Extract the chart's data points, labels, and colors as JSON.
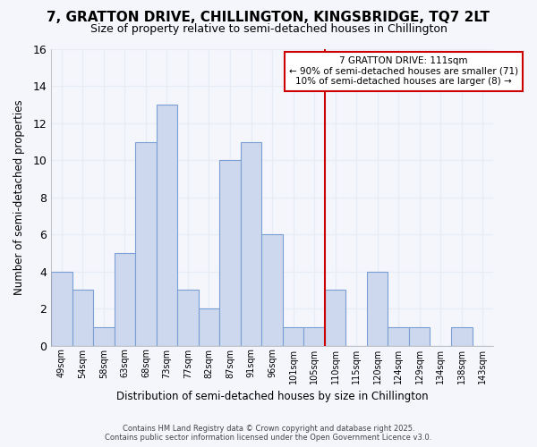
{
  "title": "7, GRATTON DRIVE, CHILLINGTON, KINGSBRIDGE, TQ7 2LT",
  "subtitle": "Size of property relative to semi-detached houses in Chillington",
  "xlabel": "Distribution of semi-detached houses by size in Chillington",
  "ylabel": "Number of semi-detached properties",
  "bar_color": "#cdd8ee",
  "bar_edge_color": "#7a9fd4",
  "background_color": "#f4f6fc",
  "grid_color": "#e8ecf5",
  "vline_color": "#cc0000",
  "annotation_line1": "7 GRATTON DRIVE: 111sqm",
  "annotation_line2": "← 90% of semi-detached houses are smaller (71)",
  "annotation_line3": "10% of semi-detached houses are larger (8) →",
  "annotation_box_color": "#ffffff",
  "annotation_box_edge": "#cc0000",
  "footer_line1": "Contains HM Land Registry data © Crown copyright and database right 2025.",
  "footer_line2": "Contains public sector information licensed under the Open Government Licence v3.0.",
  "bin_labels": [
    "49sqm",
    "54sqm",
    "58sqm",
    "63sqm",
    "68sqm",
    "73sqm",
    "77sqm",
    "82sqm",
    "87sqm",
    "91sqm",
    "96sqm",
    "101sqm",
    "105sqm",
    "110sqm",
    "115sqm",
    "120sqm",
    "124sqm",
    "129sqm",
    "134sqm",
    "138sqm",
    "143sqm"
  ],
  "counts": [
    4,
    3,
    1,
    5,
    11,
    13,
    3,
    2,
    10,
    11,
    6,
    1,
    1,
    3,
    0,
    4,
    1,
    1,
    0,
    1,
    0
  ],
  "n_bins": 21,
  "vline_bin": 13,
  "ylim": [
    0,
    16
  ],
  "yticks": [
    0,
    2,
    4,
    6,
    8,
    10,
    12,
    14,
    16
  ]
}
